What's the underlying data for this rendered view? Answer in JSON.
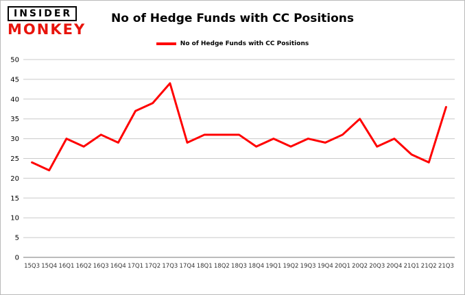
{
  "logo": {
    "line1": "INSIDER",
    "line2": "MONKEY",
    "accent_color": "#e8140c"
  },
  "title": "No of Hedge Funds with CC Positions",
  "legend": {
    "label": "No of Hedge Funds with CC Positions",
    "color": "#ff0000"
  },
  "chart_data": {
    "type": "line",
    "title": "No of Hedge Funds with CC Positions",
    "xlabel": "",
    "ylabel": "",
    "ylim": [
      0,
      50
    ],
    "ytick_step": 5,
    "grid": true,
    "legend_position": "top",
    "categories": [
      "15Q3",
      "15Q4",
      "16Q1",
      "16Q2",
      "16Q3",
      "16Q4",
      "17Q1",
      "17Q2",
      "17Q3",
      "17Q4",
      "18Q1",
      "18Q2",
      "18Q3",
      "18Q4",
      "19Q1",
      "19Q2",
      "19Q3",
      "19Q4",
      "20Q1",
      "20Q2",
      "20Q3",
      "20Q4",
      "21Q1",
      "21Q2",
      "21Q3"
    ],
    "series": [
      {
        "name": "No of Hedge Funds with CC Positions",
        "color": "#ff0000",
        "values": [
          24,
          22,
          30,
          28,
          31,
          29,
          37,
          39,
          44,
          29,
          31,
          31,
          31,
          28,
          30,
          28,
          30,
          29,
          31,
          35,
          28,
          30,
          26,
          24,
          38
        ]
      }
    ]
  }
}
